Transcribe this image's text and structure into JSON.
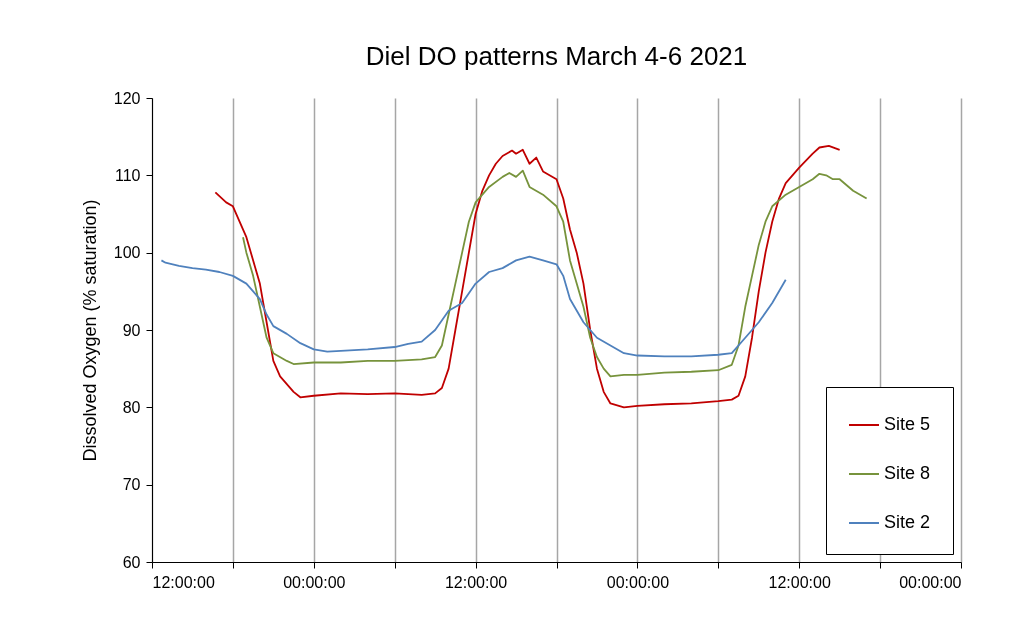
{
  "chart_data": {
    "type": "line",
    "title": "Diel DO patterns March 4-6 2021",
    "ylabel": "Dissolved Oxygen (% saturation)",
    "xlim": [
      "2021-03-04T12:00",
      "2021-03-07T00:00"
    ],
    "xticks": [
      {
        "value": "2021-03-04T12:00",
        "label": "12:00:00"
      },
      {
        "value": "2021-03-04T18:00",
        "label": null
      },
      {
        "value": "2021-03-05T00:00",
        "label": "00:00:00"
      },
      {
        "value": "2021-03-05T06:00",
        "label": null
      },
      {
        "value": "2021-03-05T12:00",
        "label": "12:00:00"
      },
      {
        "value": "2021-03-05T18:00",
        "label": null
      },
      {
        "value": "2021-03-06T00:00",
        "label": "00:00:00"
      },
      {
        "value": "2021-03-06T06:00",
        "label": null
      },
      {
        "value": "2021-03-06T12:00",
        "label": "12:00:00"
      },
      {
        "value": "2021-03-06T18:00",
        "label": null
      },
      {
        "value": "2021-03-07T00:00",
        "label": "00:00:00"
      }
    ],
    "ylim": [
      60,
      120
    ],
    "yticks": [
      60,
      70,
      80,
      90,
      100,
      110,
      120
    ],
    "grid": "x",
    "legend": "bottom right",
    "marker": "none",
    "line_style": "solid",
    "series": [
      {
        "name": "Site 5",
        "color": "#c00000",
        "x": [
          "2021-03-04T16:42",
          "2021-03-04T17:30",
          "2021-03-04T18:00",
          "2021-03-04T19:00",
          "2021-03-04T20:00",
          "2021-03-04T20:30",
          "2021-03-04T21:00",
          "2021-03-04T21:30",
          "2021-03-04T22:30",
          "2021-03-04T23:00",
          "2021-03-05T00:00",
          "2021-03-05T02:00",
          "2021-03-05T04:00",
          "2021-03-05T06:00",
          "2021-03-05T08:00",
          "2021-03-05T09:00",
          "2021-03-05T09:30",
          "2021-03-05T10:00",
          "2021-03-05T10:30",
          "2021-03-05T11:00",
          "2021-03-05T11:30",
          "2021-03-05T12:00",
          "2021-03-05T12:30",
          "2021-03-05T13:00",
          "2021-03-05T13:30",
          "2021-03-05T14:00",
          "2021-03-05T14:42",
          "2021-03-05T15:00",
          "2021-03-05T15:30",
          "2021-03-05T16:00",
          "2021-03-05T16:30",
          "2021-03-05T17:00",
          "2021-03-05T18:00",
          "2021-03-05T18:30",
          "2021-03-05T19:00",
          "2021-03-05T19:30",
          "2021-03-05T20:00",
          "2021-03-05T20:30",
          "2021-03-05T21:00",
          "2021-03-05T21:30",
          "2021-03-05T22:00",
          "2021-03-05T23:00",
          "2021-03-06T00:00",
          "2021-03-06T02:00",
          "2021-03-06T04:00",
          "2021-03-06T06:00",
          "2021-03-06T07:00",
          "2021-03-06T07:30",
          "2021-03-06T08:00",
          "2021-03-06T08:30",
          "2021-03-06T09:00",
          "2021-03-06T09:30",
          "2021-03-06T10:00",
          "2021-03-06T10:30",
          "2021-03-06T11:00",
          "2021-03-06T12:00",
          "2021-03-06T13:00",
          "2021-03-06T13:30",
          "2021-03-06T14:12",
          "2021-03-06T15:00"
        ],
        "values": [
          107.8,
          106.5,
          106,
          102,
          96,
          91,
          86,
          84,
          82,
          81.3,
          81.5,
          81.8,
          81.7,
          81.8,
          81.6,
          81.8,
          82.5,
          85,
          90,
          95,
          100,
          105,
          108,
          110,
          111.5,
          112.5,
          113.2,
          112.8,
          113.3,
          111.5,
          112.3,
          110.5,
          109.5,
          107,
          103,
          100,
          96,
          90,
          85,
          82,
          80.5,
          80,
          80.2,
          80.4,
          80.5,
          80.8,
          81,
          81.5,
          84,
          89,
          95,
          100,
          104,
          107,
          109,
          111,
          112.8,
          113.6,
          113.8,
          113.3
        ]
      },
      {
        "name": "Site 8",
        "color": "#77933c",
        "x": [
          "2021-03-04T18:45",
          "2021-03-04T19:00",
          "2021-03-04T19:30",
          "2021-03-04T20:00",
          "2021-03-04T20:30",
          "2021-03-04T21:00",
          "2021-03-04T22:00",
          "2021-03-04T22:30",
          "2021-03-05T00:00",
          "2021-03-05T02:00",
          "2021-03-05T04:00",
          "2021-03-05T06:00",
          "2021-03-05T08:00",
          "2021-03-05T09:00",
          "2021-03-05T09:30",
          "2021-03-05T10:00",
          "2021-03-05T10:30",
          "2021-03-05T11:00",
          "2021-03-05T11:30",
          "2021-03-05T12:00",
          "2021-03-05T12:30",
          "2021-03-05T13:00",
          "2021-03-05T14:00",
          "2021-03-05T14:30",
          "2021-03-05T15:00",
          "2021-03-05T15:30",
          "2021-03-05T16:00",
          "2021-03-05T17:00",
          "2021-03-05T18:00",
          "2021-03-05T18:30",
          "2021-03-05T19:00",
          "2021-03-05T19:30",
          "2021-03-05T20:00",
          "2021-03-05T20:30",
          "2021-03-05T21:00",
          "2021-03-05T21:30",
          "2021-03-05T22:00",
          "2021-03-05T23:00",
          "2021-03-06T00:00",
          "2021-03-06T02:00",
          "2021-03-06T04:00",
          "2021-03-06T06:00",
          "2021-03-06T07:00",
          "2021-03-06T07:30",
          "2021-03-06T08:00",
          "2021-03-06T08:30",
          "2021-03-06T09:00",
          "2021-03-06T09:30",
          "2021-03-06T10:00",
          "2021-03-06T11:00",
          "2021-03-06T12:00",
          "2021-03-06T13:00",
          "2021-03-06T13:30",
          "2021-03-06T14:00",
          "2021-03-06T14:30",
          "2021-03-06T15:00",
          "2021-03-06T16:00",
          "2021-03-06T17:00"
        ],
        "values": [
          102,
          100,
          97,
          93,
          89,
          87,
          86,
          85.6,
          85.8,
          85.8,
          86,
          86,
          86.2,
          86.5,
          88,
          92,
          96,
          100,
          104,
          106.5,
          107.5,
          108.5,
          109.8,
          110.3,
          109.8,
          110.6,
          108.5,
          107.5,
          106,
          104,
          99,
          96,
          93,
          89,
          86.5,
          85,
          84,
          84.2,
          84.2,
          84.5,
          84.6,
          84.8,
          85.5,
          88,
          93,
          97,
          101,
          104,
          106,
          107.5,
          108.5,
          109.5,
          110.2,
          110,
          109.5,
          109.5,
          108,
          107
        ]
      },
      {
        "name": "Site 2",
        "color": "#4f81bd",
        "x": [
          "2021-03-04T12:42",
          "2021-03-04T13:00",
          "2021-03-04T14:00",
          "2021-03-04T15:00",
          "2021-03-04T16:00",
          "2021-03-04T17:00",
          "2021-03-04T18:00",
          "2021-03-04T19:00",
          "2021-03-04T20:00",
          "2021-03-04T20:30",
          "2021-03-04T21:00",
          "2021-03-04T22:00",
          "2021-03-04T23:00",
          "2021-03-05T00:00",
          "2021-03-05T01:00",
          "2021-03-05T02:00",
          "2021-03-05T04:00",
          "2021-03-05T06:00",
          "2021-03-05T07:00",
          "2021-03-05T08:00",
          "2021-03-05T09:00",
          "2021-03-05T10:00",
          "2021-03-05T11:00",
          "2021-03-05T12:00",
          "2021-03-05T13:00",
          "2021-03-05T14:00",
          "2021-03-05T15:00",
          "2021-03-05T16:00",
          "2021-03-05T17:00",
          "2021-03-05T18:00",
          "2021-03-05T18:30",
          "2021-03-05T19:00",
          "2021-03-05T20:00",
          "2021-03-05T21:00",
          "2021-03-05T22:00",
          "2021-03-05T23:00",
          "2021-03-06T00:00",
          "2021-03-06T02:00",
          "2021-03-06T04:00",
          "2021-03-06T06:00",
          "2021-03-06T07:00",
          "2021-03-06T08:00",
          "2021-03-06T09:00",
          "2021-03-06T10:00",
          "2021-03-06T11:00"
        ],
        "values": [
          99,
          98.7,
          98.3,
          98,
          97.8,
          97.5,
          97,
          96,
          94,
          92,
          90.5,
          89.5,
          88.3,
          87.5,
          87.2,
          87.3,
          87.5,
          87.8,
          88.2,
          88.5,
          90,
          92.5,
          93.5,
          96,
          97.5,
          98,
          99,
          99.5,
          99,
          98.5,
          97,
          94,
          91,
          89,
          88,
          87,
          86.7,
          86.6,
          86.6,
          86.8,
          87,
          89,
          91,
          93.5,
          96.5
        ]
      }
    ]
  }
}
